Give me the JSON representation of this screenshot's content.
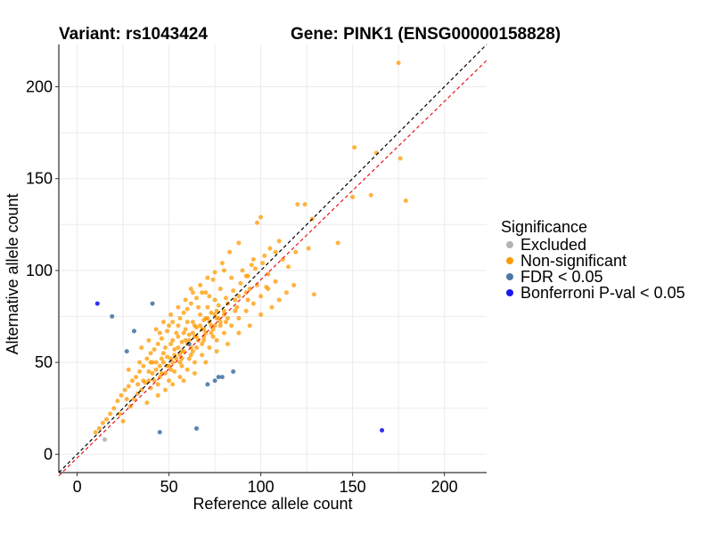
{
  "colors": {
    "excluded": "#b3b3b3",
    "non_significant": "#ff9900",
    "fdr": "#4a78a8",
    "bonferroni": "#1a1aee",
    "identity_line": "#000000",
    "fit_line": "#e8141a",
    "grid": "#ebebeb"
  },
  "chart_data": {
    "type": "scatter",
    "title_left": "Variant: rs1043424",
    "title_right": "Gene: PINK1 (ENSG00000158828)",
    "xlabel": "Reference allele count",
    "ylabel": "Alternative allele count",
    "xlim": [
      -10,
      223
    ],
    "ylim": [
      -10,
      223
    ],
    "x_ticks": [
      0,
      50,
      100,
      150,
      200
    ],
    "y_ticks": [
      0,
      50,
      100,
      150,
      200
    ],
    "grid": true,
    "legend": {
      "title": "Significance",
      "position": "right",
      "entries": [
        {
          "key": "excluded",
          "label": "Excluded"
        },
        {
          "key": "non_significant",
          "label": "Non-significant"
        },
        {
          "key": "fdr",
          "label": "FDR < 0.05"
        },
        {
          "key": "bonferroni",
          "label": "Bonferroni P-val < 0.05"
        }
      ]
    },
    "reference_lines": [
      {
        "key": "identity_line",
        "slope": 1.0,
        "intercept": 0,
        "style": "dashed"
      },
      {
        "key": "fit_line",
        "slope": 0.97,
        "intercept": -2,
        "style": "dashed"
      }
    ],
    "series": [
      {
        "key": "excluded",
        "points": [
          [
            15,
            8
          ]
        ]
      },
      {
        "key": "fdr",
        "points": [
          [
            19,
            75
          ],
          [
            31,
            67
          ],
          [
            27,
            56
          ],
          [
            41,
            82
          ],
          [
            45,
            12
          ],
          [
            65,
            14
          ],
          [
            71,
            38
          ],
          [
            75,
            40
          ],
          [
            77,
            42
          ],
          [
            79,
            42
          ],
          [
            85,
            45
          ],
          [
            61,
            60
          ]
        ]
      },
      {
        "key": "bonferroni",
        "points": [
          [
            11,
            82
          ],
          [
            166,
            13
          ]
        ]
      },
      {
        "key": "non_significant",
        "points": [
          [
            175,
            213
          ],
          [
            163,
            164
          ],
          [
            176,
            161
          ],
          [
            151,
            167
          ],
          [
            179,
            138
          ],
          [
            160,
            141
          ],
          [
            150,
            140
          ],
          [
            142,
            115
          ],
          [
            129,
            87
          ],
          [
            124,
            136
          ],
          [
            120,
            136
          ],
          [
            128,
            128
          ],
          [
            126,
            112
          ],
          [
            119,
            110
          ],
          [
            110,
            116
          ],
          [
            105,
            112
          ],
          [
            98,
            126
          ],
          [
            100,
            129
          ],
          [
            103,
            91
          ],
          [
            95,
            103
          ],
          [
            92,
            97
          ],
          [
            88,
            115
          ],
          [
            83,
            110
          ],
          [
            80,
            100
          ],
          [
            78,
            72
          ],
          [
            74,
            95
          ],
          [
            70,
            88
          ],
          [
            65,
            85
          ],
          [
            62,
            90
          ],
          [
            60,
            79
          ],
          [
            58,
            77
          ],
          [
            55,
            70
          ],
          [
            52,
            72
          ],
          [
            49,
            67
          ],
          [
            46,
            63
          ],
          [
            44,
            60
          ],
          [
            42,
            57
          ],
          [
            40,
            55
          ],
          [
            38,
            52
          ],
          [
            36,
            48
          ],
          [
            34,
            45
          ],
          [
            32,
            42
          ],
          [
            30,
            40
          ],
          [
            28,
            37
          ],
          [
            26,
            35
          ],
          [
            24,
            32
          ],
          [
            22,
            29
          ],
          [
            20,
            25
          ],
          [
            18,
            22
          ],
          [
            16,
            19
          ],
          [
            14,
            17
          ],
          [
            12,
            14
          ],
          [
            10,
            12
          ],
          [
            23,
            22
          ],
          [
            25,
            18
          ],
          [
            29,
            26
          ],
          [
            33,
            33
          ],
          [
            37,
            39
          ],
          [
            41,
            44
          ],
          [
            45,
            48
          ],
          [
            49,
            53
          ],
          [
            53,
            57
          ],
          [
            57,
            61
          ],
          [
            61,
            65
          ],
          [
            65,
            69
          ],
          [
            69,
            73
          ],
          [
            73,
            77
          ],
          [
            77,
            81
          ],
          [
            81,
            85
          ],
          [
            85,
            89
          ],
          [
            89,
            93
          ],
          [
            93,
            97
          ],
          [
            97,
            101
          ],
          [
            101,
            104
          ],
          [
            48,
            35
          ],
          [
            52,
            38
          ],
          [
            56,
            42
          ],
          [
            60,
            46
          ],
          [
            64,
            50
          ],
          [
            68,
            54
          ],
          [
            72,
            58
          ],
          [
            76,
            62
          ],
          [
            80,
            66
          ],
          [
            84,
            70
          ],
          [
            88,
            74
          ],
          [
            92,
            78
          ],
          [
            96,
            82
          ],
          [
            100,
            86
          ],
          [
            104,
            90
          ],
          [
            108,
            94
          ],
          [
            35,
            58
          ],
          [
            39,
            62
          ],
          [
            43,
            68
          ],
          [
            47,
            72
          ],
          [
            51,
            76
          ],
          [
            55,
            80
          ],
          [
            59,
            84
          ],
          [
            63,
            88
          ],
          [
            67,
            92
          ],
          [
            71,
            96
          ],
          [
            75,
            99
          ],
          [
            79,
            104
          ],
          [
            31,
            30
          ],
          [
            35,
            35
          ],
          [
            39,
            45
          ],
          [
            43,
            50
          ],
          [
            47,
            55
          ],
          [
            51,
            60
          ],
          [
            55,
            64
          ],
          [
            59,
            68
          ],
          [
            63,
            72
          ],
          [
            67,
            76
          ],
          [
            71,
            80
          ],
          [
            75,
            84
          ],
          [
            42,
            40
          ],
          [
            46,
            44
          ],
          [
            50,
            48
          ],
          [
            54,
            52
          ],
          [
            58,
            56
          ],
          [
            62,
            58
          ],
          [
            66,
            62
          ],
          [
            70,
            66
          ],
          [
            74,
            68
          ],
          [
            78,
            70
          ],
          [
            82,
            74
          ],
          [
            86,
            78
          ],
          [
            38,
            28
          ],
          [
            44,
            32
          ],
          [
            50,
            40
          ],
          [
            56,
            50
          ],
          [
            62,
            54
          ],
          [
            68,
            60
          ],
          [
            74,
            64
          ],
          [
            80,
            76
          ],
          [
            86,
            84
          ],
          [
            92,
            88
          ],
          [
            98,
            92
          ],
          [
            104,
            98
          ],
          [
            34,
            50
          ],
          [
            40,
            50
          ],
          [
            46,
            52
          ],
          [
            52,
            62
          ],
          [
            58,
            66
          ],
          [
            64,
            70
          ],
          [
            70,
            74
          ],
          [
            76,
            78
          ],
          [
            82,
            82
          ],
          [
            88,
            86
          ],
          [
            94,
            90
          ],
          [
            28,
            46
          ],
          [
            27,
            30
          ],
          [
            33,
            38
          ],
          [
            39,
            40
          ],
          [
            45,
            42
          ],
          [
            51,
            46
          ],
          [
            57,
            52
          ],
          [
            63,
            56
          ],
          [
            69,
            64
          ],
          [
            75,
            70
          ],
          [
            81,
            72
          ],
          [
            87,
            80
          ],
          [
            93,
            84
          ],
          [
            53,
            45
          ],
          [
            57,
            48
          ],
          [
            61,
            52
          ],
          [
            65,
            58
          ],
          [
            69,
            62
          ],
          [
            73,
            66
          ],
          [
            48,
            58
          ],
          [
            54,
            66
          ],
          [
            60,
            72
          ],
          [
            66,
            80
          ],
          [
            72,
            86
          ],
          [
            78,
            90
          ],
          [
            45,
            66
          ],
          [
            50,
            70
          ],
          [
            56,
            74
          ],
          [
            62,
            82
          ],
          [
            68,
            88
          ],
          [
            84,
            96
          ],
          [
            90,
            100
          ],
          [
            96,
            106
          ],
          [
            102,
            108
          ],
          [
            108,
            110
          ],
          [
            112,
            106
          ],
          [
            115,
            102
          ],
          [
            58,
            40
          ],
          [
            64,
            44
          ],
          [
            70,
            50
          ],
          [
            76,
            56
          ],
          [
            82,
            60
          ],
          [
            88,
            66
          ],
          [
            94,
            70
          ],
          [
            100,
            76
          ],
          [
            106,
            80
          ],
          [
            110,
            84
          ],
          [
            114,
            88
          ],
          [
            118,
            92
          ],
          [
            36,
            40
          ],
          [
            40,
            36
          ],
          [
            44,
            38
          ],
          [
            48,
            44
          ],
          [
            52,
            50
          ],
          [
            56,
            54
          ],
          [
            60,
            60
          ],
          [
            64,
            64
          ],
          [
            68,
            68
          ],
          [
            72,
            72
          ],
          [
            76,
            74
          ],
          [
            80,
            78
          ],
          [
            41,
            50
          ],
          [
            43,
            46
          ],
          [
            47,
            50
          ],
          [
            49,
            48
          ],
          [
            51,
            52
          ],
          [
            53,
            54
          ],
          [
            55,
            58
          ],
          [
            57,
            56
          ],
          [
            59,
            62
          ],
          [
            61,
            62
          ],
          [
            63,
            66
          ],
          [
            65,
            64
          ],
          [
            67,
            70
          ],
          [
            69,
            68
          ],
          [
            71,
            74
          ],
          [
            73,
            70
          ],
          [
            75,
            76
          ],
          [
            77,
            74
          ]
        ]
      }
    ]
  }
}
